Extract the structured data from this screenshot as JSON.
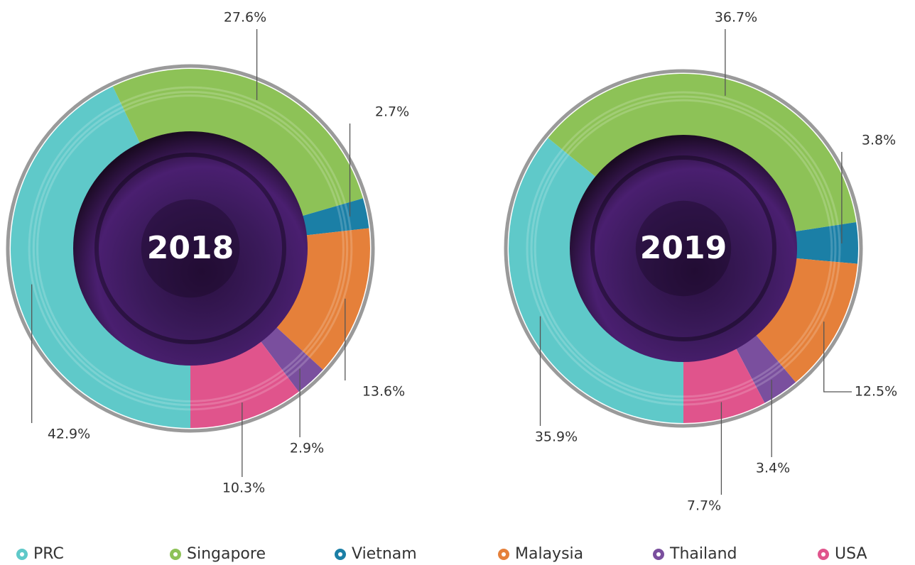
{
  "chart_data": [
    {
      "type": "pie",
      "title": "2018",
      "categories": [
        "PRC",
        "Singapore",
        "Vietnam",
        "Malaysia",
        "Thailand",
        "USA"
      ],
      "values": [
        42.9,
        27.6,
        2.7,
        13.6,
        2.9,
        10.3
      ],
      "value_labels": [
        "42.9%",
        "27.6%",
        "2.7%",
        "13.6%",
        "2.9%",
        "10.3%"
      ],
      "colors": [
        "#5fc9c9",
        "#8dc257",
        "#1b7fa6",
        "#e5803a",
        "#7a4f9e",
        "#e0548c"
      ]
    },
    {
      "type": "pie",
      "title": "2019",
      "categories": [
        "PRC",
        "Singapore",
        "Vietnam",
        "Malaysia",
        "Thailand",
        "USA"
      ],
      "values": [
        35.9,
        36.7,
        3.8,
        12.5,
        3.4,
        7.7
      ],
      "value_labels": [
        "35.9%",
        "36.7%",
        "3.8%",
        "12.5%",
        "3.4%",
        "7.7%"
      ],
      "colors": [
        "#5fc9c9",
        "#8dc257",
        "#1b7fa6",
        "#e5803a",
        "#7a4f9e",
        "#e0548c"
      ]
    }
  ]
}
